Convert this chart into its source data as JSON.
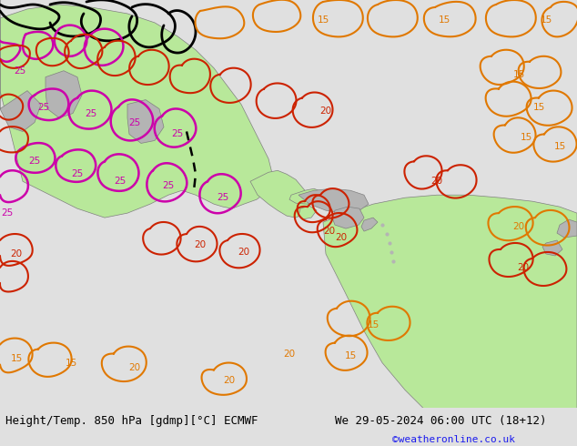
{
  "title_left": "Height/Temp. 850 hPa [gdmp][°C] ECMWF",
  "title_right": "We 29-05-2024 06:00 UTC (18+12)",
  "copyright": "©weatheronline.co.uk",
  "bg_color": "#e0e0e0",
  "land_green_color": "#b8e89a",
  "land_gray_color": "#b4b4b4",
  "sea_color": "#e0e0e0",
  "orange": "#e07800",
  "red": "#cc2200",
  "magenta": "#cc00aa",
  "black": "#000000",
  "bottom_bar_color": "#c8c8c8",
  "figsize": [
    6.34,
    4.9
  ],
  "dpi": 100
}
